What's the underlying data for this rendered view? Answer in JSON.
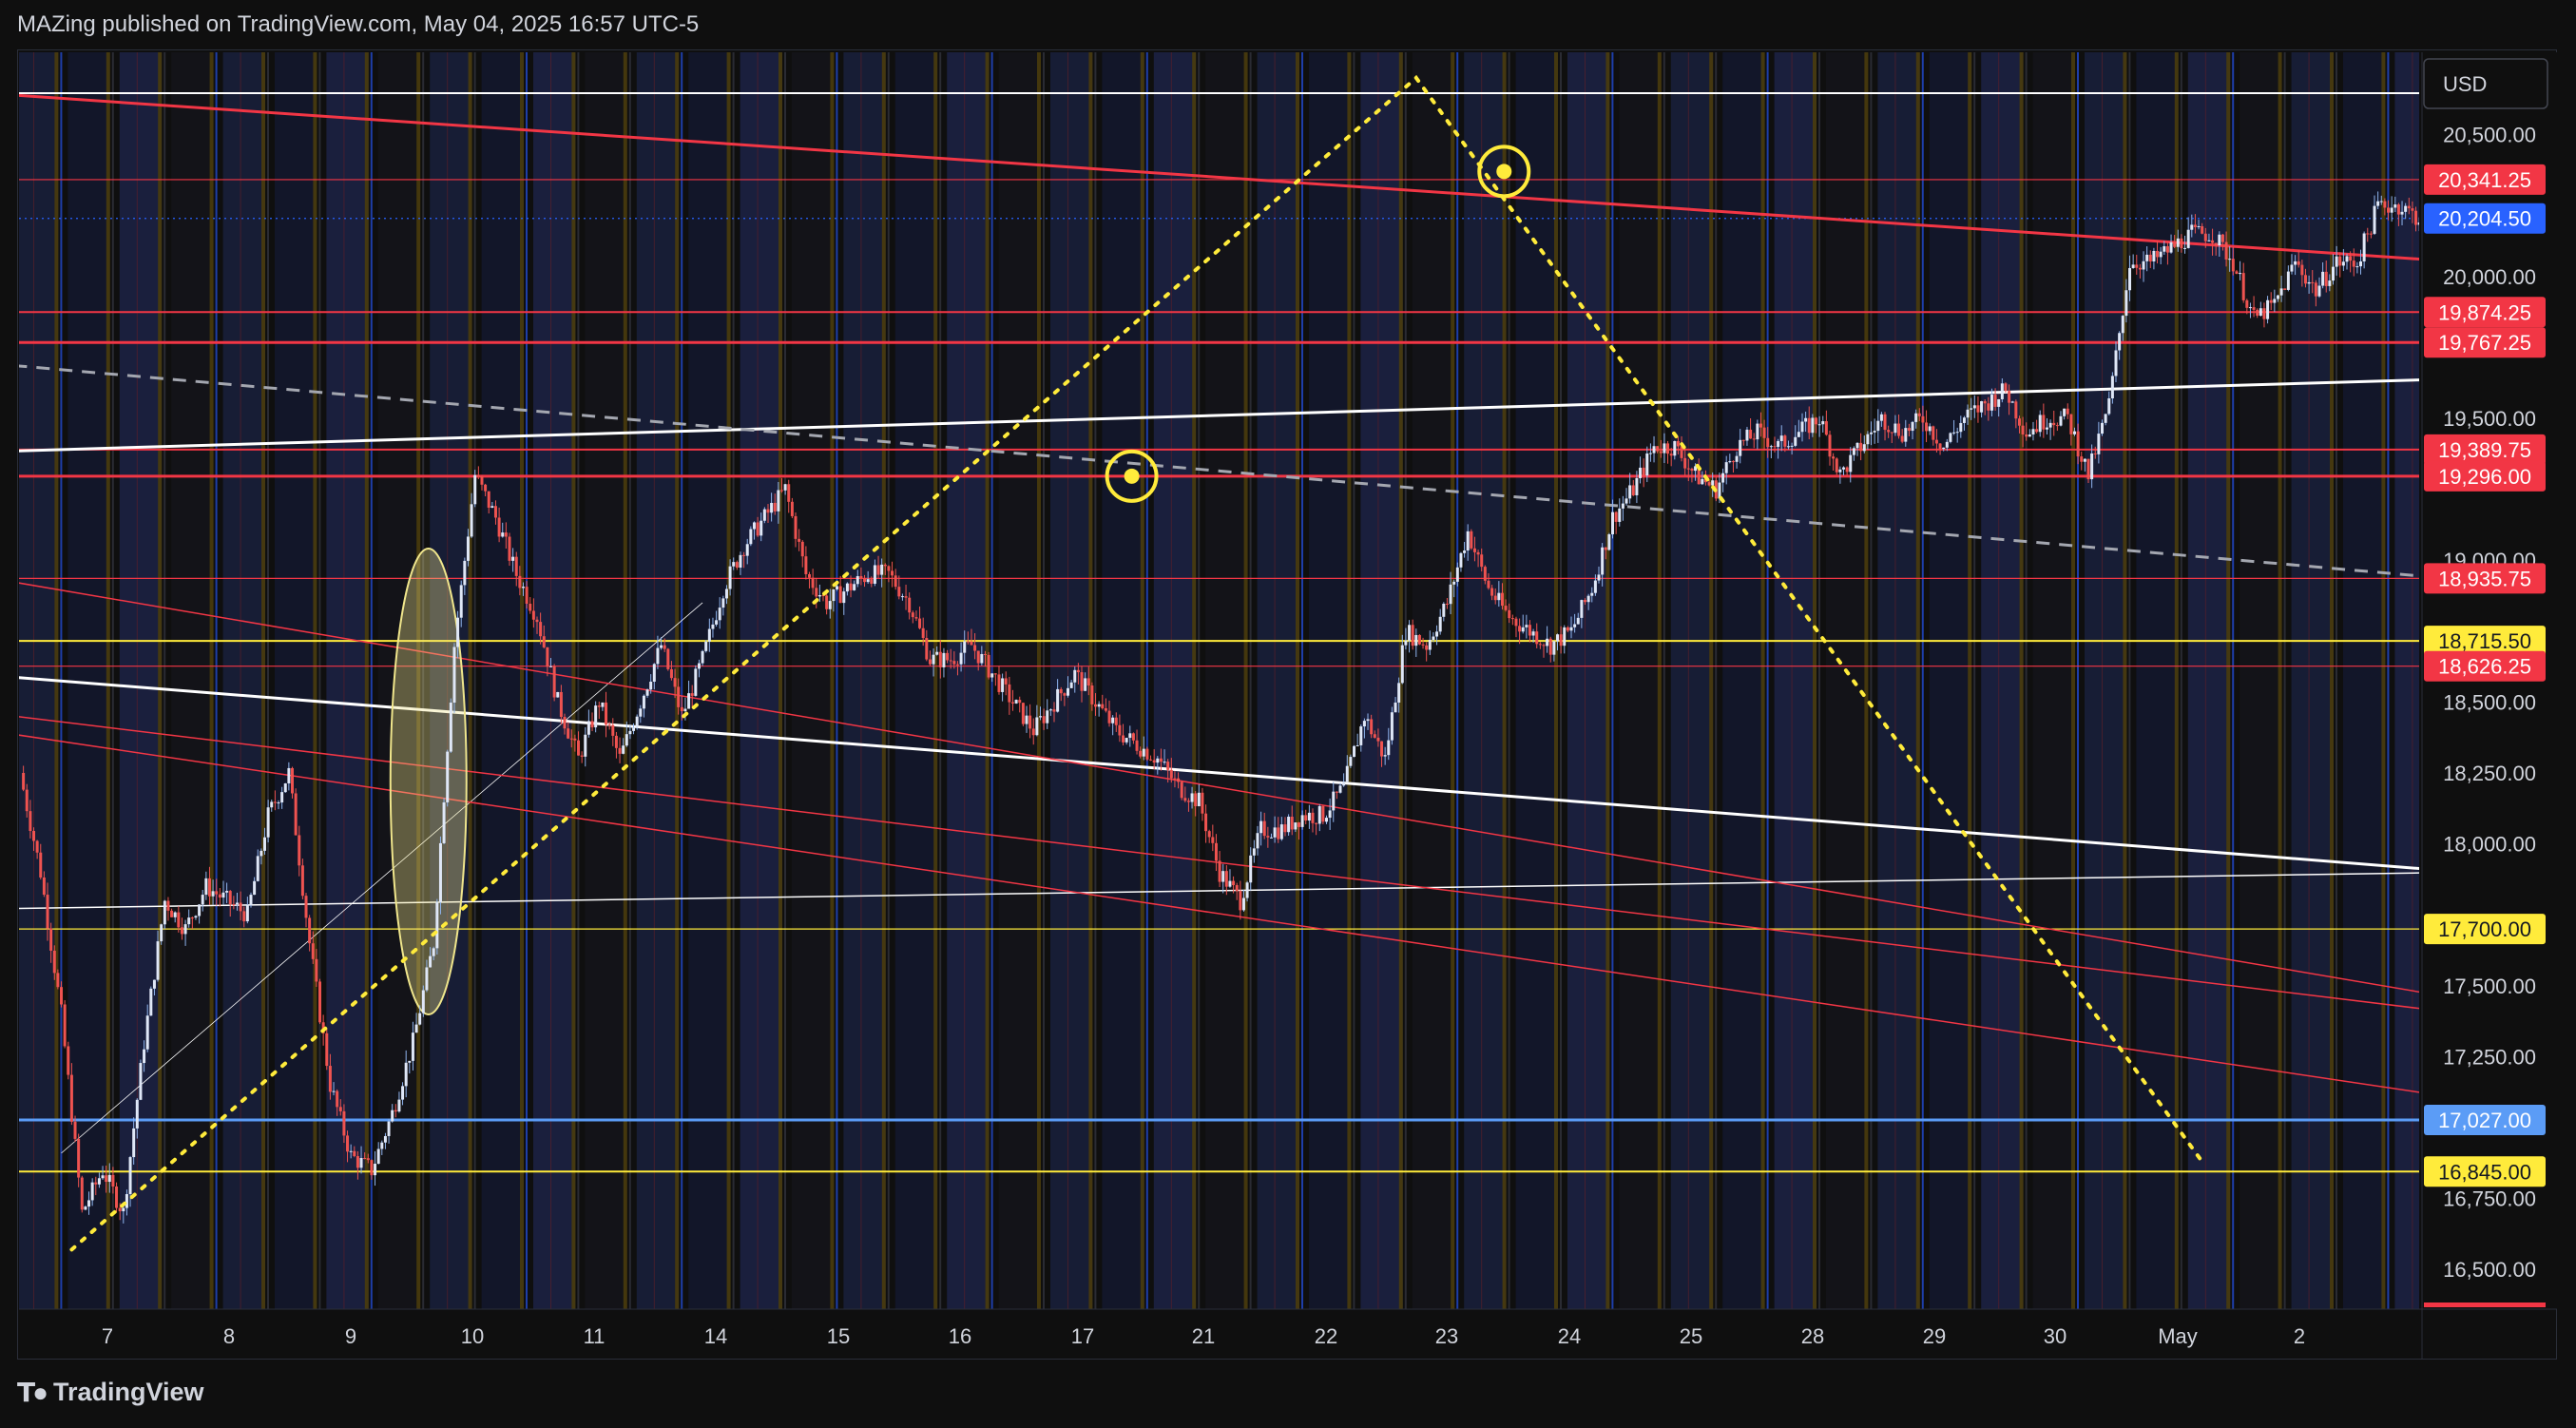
{
  "header": {
    "publish_line": "MAZing published on TradingView.com, May 04, 2025 16:57 UTC-5"
  },
  "footer": {
    "brand": "TradingView"
  },
  "chart_data": {
    "type": "candlestick",
    "currency": "USD",
    "title": "",
    "ylim": [
      16360,
      20790
    ],
    "y_ticks": [
      16500,
      16750,
      17000,
      17250,
      17500,
      17750,
      18000,
      18250,
      18500,
      18750,
      19000,
      19250,
      19500,
      20000,
      20250,
      20500
    ],
    "y_tick_labels": [
      "16,500.00",
      "16,750.00",
      "",
      "17,250.00",
      "17,500.00",
      "",
      "18,000.00",
      "18,250.00",
      "18,500.00",
      "",
      "19,000.00",
      "",
      "19,500.00",
      "20,000.00",
      "",
      "20,500.00"
    ],
    "x_categories": [
      "7",
      "8",
      "9",
      "10",
      "11",
      "14",
      "15",
      "16",
      "17",
      "21",
      "22",
      "23",
      "24",
      "25",
      "28",
      "29",
      "30",
      "May",
      "2"
    ],
    "current_price": {
      "label": "20,204.50",
      "value": 20204.5,
      "color": "#2962ff"
    },
    "price_levels": [
      {
        "label": "20,341.25",
        "value": 20341.25,
        "color": "#f23645",
        "style": "thin"
      },
      {
        "label": "19,874.25",
        "value": 19874.25,
        "color": "#f23645",
        "style": "medium"
      },
      {
        "label": "19,767.25",
        "value": 19767.25,
        "color": "#f23645",
        "style": "thick"
      },
      {
        "label": "19,389.75",
        "value": 19389.75,
        "color": "#f23645",
        "style": "medium"
      },
      {
        "label": "19,296.00",
        "value": 19296.0,
        "color": "#f23645",
        "style": "thick"
      },
      {
        "label": "18,935.75",
        "value": 18935.75,
        "color": "#f23645",
        "style": "thin"
      },
      {
        "label": "18,715.50",
        "value": 18715.5,
        "color": "#ffeb3b",
        "style": "medium"
      },
      {
        "label": "18,626.25",
        "value": 18626.25,
        "color": "#f23645",
        "style": "thin"
      },
      {
        "label": "17,700.00",
        "value": 17700.0,
        "color": "#ffeb3b",
        "style": "thin"
      },
      {
        "label": "17,027.00",
        "value": 17027.0,
        "color": "#5b9cf6",
        "style": "thick"
      },
      {
        "label": "16,845.00",
        "value": 16845.0,
        "color": "#ffeb3b",
        "style": "medium"
      }
    ],
    "series": [
      {
        "name": "",
        "price_path": [
          [
            0,
            18250
          ],
          [
            0.4,
            17900
          ],
          [
            0.8,
            17400
          ],
          [
            1.2,
            16700
          ],
          [
            1.6,
            16850
          ],
          [
            2,
            16700
          ],
          [
            2.4,
            17300
          ],
          [
            2.8,
            17800
          ],
          [
            3.2,
            17700
          ],
          [
            3.6,
            17850
          ],
          [
            4,
            17800
          ],
          [
            4.4,
            17750
          ],
          [
            4.8,
            18100
          ],
          [
            5.2,
            18250
          ],
          [
            5.6,
            17650
          ],
          [
            6,
            17150
          ],
          [
            6.4,
            16900
          ],
          [
            6.8,
            16850
          ],
          [
            7.2,
            17050
          ],
          [
            7.6,
            17300
          ],
          [
            8,
            17650
          ],
          [
            8.4,
            18700
          ],
          [
            8.8,
            19300
          ],
          [
            9.2,
            19150
          ],
          [
            9.6,
            18950
          ],
          [
            10,
            18800
          ],
          [
            10.4,
            18500
          ],
          [
            10.8,
            18300
          ],
          [
            11.2,
            18500
          ],
          [
            11.6,
            18300
          ],
          [
            12,
            18500
          ],
          [
            12.4,
            18700
          ],
          [
            12.8,
            18450
          ],
          [
            13.2,
            18650
          ],
          [
            13.6,
            18900
          ],
          [
            14,
            19050
          ],
          [
            14.4,
            19150
          ],
          [
            14.8,
            19250
          ],
          [
            15.2,
            18950
          ],
          [
            15.6,
            18850
          ],
          [
            16,
            18900
          ],
          [
            16.4,
            18950
          ],
          [
            16.8,
            18950
          ],
          [
            17.2,
            18850
          ],
          [
            17.6,
            18650
          ],
          [
            18,
            18650
          ],
          [
            18.4,
            18700
          ],
          [
            18.8,
            18600
          ],
          [
            19.2,
            18500
          ],
          [
            19.6,
            18400
          ],
          [
            20,
            18500
          ],
          [
            20.4,
            18600
          ],
          [
            20.8,
            18500
          ],
          [
            21.2,
            18400
          ],
          [
            21.6,
            18350
          ],
          [
            22,
            18300
          ],
          [
            22.4,
            18200
          ],
          [
            22.8,
            18150
          ],
          [
            23.2,
            17900
          ],
          [
            23.6,
            17800
          ],
          [
            24,
            18050
          ],
          [
            24.4,
            18050
          ],
          [
            24.8,
            18100
          ],
          [
            25.2,
            18100
          ],
          [
            25.6,
            18200
          ],
          [
            26,
            18450
          ],
          [
            26.4,
            18300
          ],
          [
            26.8,
            18750
          ],
          [
            27.2,
            18700
          ],
          [
            27.6,
            18850
          ],
          [
            28,
            19100
          ],
          [
            28.4,
            18900
          ],
          [
            28.8,
            18800
          ],
          [
            29.2,
            18750
          ],
          [
            29.6,
            18700
          ],
          [
            30,
            18750
          ],
          [
            30.4,
            18900
          ],
          [
            30.8,
            19150
          ],
          [
            31.2,
            19250
          ],
          [
            31.6,
            19400
          ],
          [
            32,
            19400
          ],
          [
            32.4,
            19300
          ],
          [
            32.8,
            19250
          ],
          [
            33.2,
            19400
          ],
          [
            33.6,
            19450
          ],
          [
            34,
            19400
          ],
          [
            34.4,
            19450
          ],
          [
            34.8,
            19500
          ],
          [
            35.2,
            19300
          ],
          [
            35.6,
            19400
          ],
          [
            36,
            19500
          ],
          [
            36.4,
            19450
          ],
          [
            36.8,
            19500
          ],
          [
            37.2,
            19400
          ],
          [
            37.6,
            19500
          ],
          [
            38,
            19550
          ],
          [
            38.4,
            19600
          ],
          [
            38.8,
            19450
          ],
          [
            39.2,
            19500
          ],
          [
            39.6,
            19500
          ],
          [
            40,
            19300
          ],
          [
            40.4,
            19550
          ],
          [
            40.8,
            20050
          ],
          [
            41.2,
            20050
          ],
          [
            41.6,
            20100
          ],
          [
            42,
            20150
          ],
          [
            42.4,
            20150
          ],
          [
            42.8,
            20050
          ],
          [
            43.2,
            19850
          ],
          [
            43.6,
            19900
          ],
          [
            44,
            20050
          ],
          [
            44.4,
            19950
          ],
          [
            44.8,
            20050
          ],
          [
            45.2,
            20050
          ],
          [
            45.6,
            20250
          ],
          [
            46,
            20250
          ],
          [
            46.4,
            20204.5
          ]
        ]
      }
    ],
    "trend_lines": [
      {
        "name": "",
        "color": "#f23645",
        "width": 3,
        "from": [
          -1,
          20650
        ],
        "to": [
          47.3,
          20050
        ]
      },
      {
        "name": "",
        "color": "#ffffff",
        "width": 3,
        "from": [
          -1,
          19380
        ],
        "to": [
          47.3,
          19640
        ]
      },
      {
        "name": "",
        "color": "#a4a7b0",
        "width": 3,
        "dash": "14,10",
        "from": [
          -1,
          19700
        ],
        "to": [
          47.3,
          18930
        ]
      },
      {
        "name": "",
        "color": "#ffffff",
        "width": 3,
        "from": [
          -1,
          18600
        ],
        "to": [
          47.3,
          17900
        ]
      },
      {
        "name": "",
        "color": "#ffffff",
        "width": 1.5,
        "from": [
          -1,
          17770
        ],
        "to": [
          47.3,
          17900
        ]
      },
      {
        "name": "",
        "color": "#ffffff",
        "width": 0.8,
        "from": [
          0.8,
          16910
        ],
        "to": [
          13.2,
          18850
        ]
      },
      {
        "name": "",
        "color": "#f23645",
        "width": 1.5,
        "from": [
          -1,
          18950
        ],
        "to": [
          47.3,
          17450
        ]
      },
      {
        "name": "",
        "color": "#f23645",
        "width": 1.5,
        "from": [
          -1,
          18470
        ],
        "to": [
          47.3,
          17400
        ]
      },
      {
        "name": "",
        "color": "#f23645",
        "width": 1.5,
        "from": [
          -1,
          18410
        ],
        "to": [
          47.3,
          17100
        ]
      }
    ],
    "projection_path": [
      [
        1,
        16570
      ],
      [
        27,
        20700
      ],
      [
        42.2,
        16880
      ]
    ],
    "markers": [
      {
        "x": 21.5,
        "y": 19296
      },
      {
        "x": 28.7,
        "y": 20370
      }
    ],
    "ellipse": {
      "x": 7.9,
      "y": 18220
    }
  }
}
